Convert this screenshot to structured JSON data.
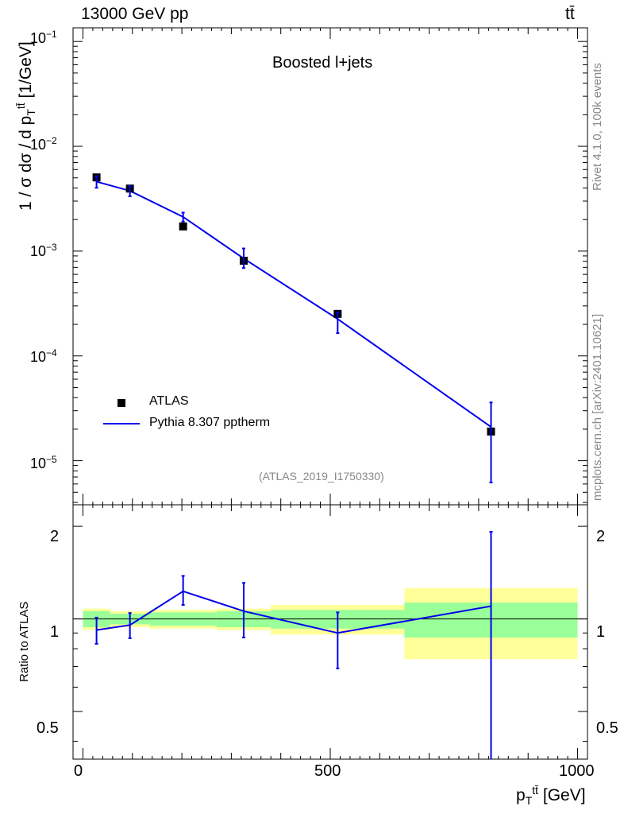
{
  "header": {
    "left": "13000 GeV pp",
    "right": "tt̄"
  },
  "side_labels": {
    "rivet": "Rivet 4.1.0,  100k events",
    "mcplots": "mcplots.cern.ch [arXiv:2401.10621]"
  },
  "main_panel": {
    "title": "Boosted l+jets",
    "analysis_tag": "(ATLAS_2019_I1750330)",
    "ylabel": "1 / σ dσ / d p_T^{tt̄} [1/GeV]",
    "ytick_labels": [
      "10^-1",
      "10^-2",
      "10^-3",
      "10^-4",
      "10^-5"
    ]
  },
  "ratio_panel": {
    "ylabel": "Ratio to ATLAS",
    "ytick_labels": [
      "2",
      "1",
      "0.5"
    ]
  },
  "xaxis": {
    "label": "p_T^{tt̄} [GeV]",
    "tick_labels": [
      "0",
      "500",
      "1000"
    ]
  },
  "legend": {
    "data_label": "ATLAS",
    "mc_label": "Pythia 8.307 pptherm"
  },
  "colors": {
    "mc": "#0000ee",
    "band_inner": "#99ff99",
    "band_outer": "#ffff99",
    "data": "#000000",
    "tag": "#888888"
  },
  "chart_data": {
    "type": "line",
    "title": "Boosted l+jets",
    "xlabel": "p_T^{tt̄} [GeV]",
    "ylabel": "1 / σ dσ / d p_T^{tt̄} [1/GeV]",
    "yscale": "log",
    "xlim": [
      -20,
      1020
    ],
    "ylim": [
      3.8e-06,
      0.135
    ],
    "bins": [
      [
        0,
        55
      ],
      [
        55,
        135
      ],
      [
        135,
        270
      ],
      [
        270,
        380
      ],
      [
        380,
        650
      ],
      [
        650,
        1000
      ]
    ],
    "series": [
      {
        "name": "ATLAS",
        "x": [
          27.5,
          95,
          202.5,
          325,
          515,
          825
        ],
        "y": [
          0.00505,
          0.00395,
          0.00172,
          0.00081,
          0.000252,
          1.9e-05
        ],
        "stat_rel": [
          0.06,
          0.04,
          0.05,
          0.06,
          0.07,
          0.13
        ],
        "total_rel": [
          0.08,
          0.06,
          0.07,
          0.08,
          0.11,
          0.26
        ]
      },
      {
        "name": "Pythia 8.307 pptherm",
        "x": [
          27.5,
          95,
          202.5,
          325,
          515,
          825
        ],
        "y": [
          0.0046,
          0.00376,
          0.00212,
          0.00085,
          0.000225,
          2.1e-05
        ],
        "yerr_lo": [
          0.00058,
          0.00043,
          0.00021,
          0.00016,
          6e-05,
          1.48e-05
        ],
        "yerr_hi": [
          0.00058,
          0.00043,
          0.00021,
          0.00021,
          3.5e-05,
          1.5e-05
        ]
      }
    ],
    "ratio": {
      "ylabel": "Ratio to ATLAS",
      "ylim": [
        0.35,
        2.35
      ],
      "yscale": "log",
      "values": [
        0.92,
        0.955,
        1.23,
        1.06,
        0.9,
        1.1
      ],
      "err_lo": [
        0.09,
        0.09,
        0.12,
        0.19,
        0.21,
        0.77
      ],
      "err_hi": [
        0.09,
        0.09,
        0.15,
        0.25,
        0.15,
        0.82
      ]
    }
  }
}
